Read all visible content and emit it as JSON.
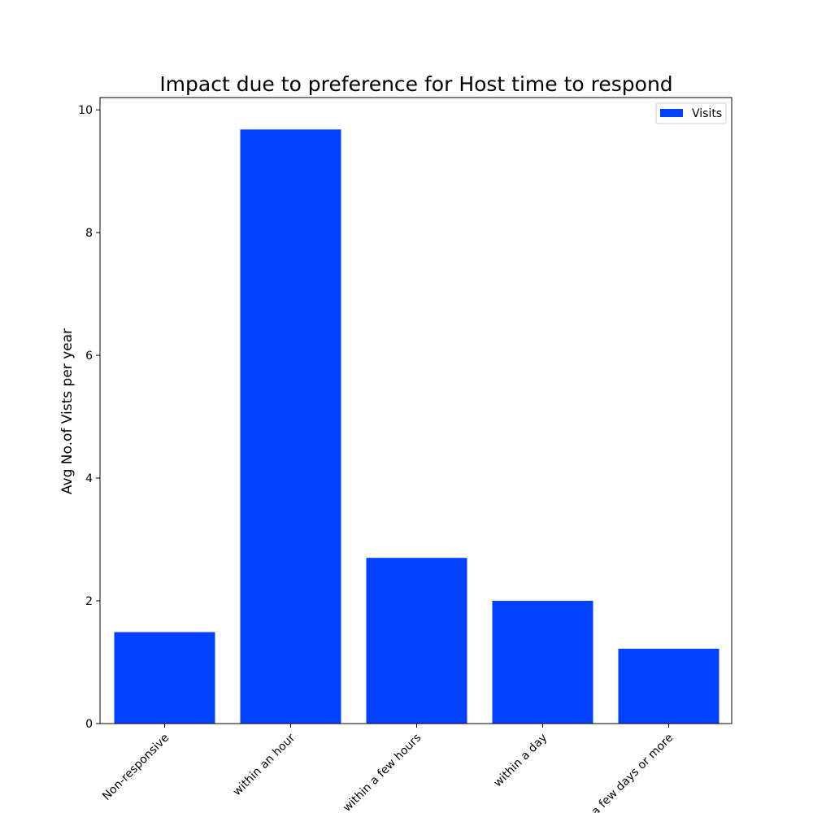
{
  "chart_data": {
    "type": "bar",
    "title": "Impact due to preference for Host time to respond",
    "xlabel": "",
    "ylabel": "Avg No.of Vists per year",
    "categories": [
      "Non-responsive",
      "within an hour",
      "within a few hours",
      "within a day",
      "a few days or more"
    ],
    "series": [
      {
        "name": "Visits",
        "values": [
          1.49,
          9.68,
          2.7,
          2.0,
          1.22
        ],
        "color": "#0340ff"
      }
    ],
    "ylim": [
      0,
      10.2
    ],
    "yticks": [
      "0",
      "2",
      "4",
      "6",
      "8",
      "10"
    ],
    "grid": false,
    "legend": {
      "placement": "top-right",
      "entries": [
        "Visits"
      ]
    }
  }
}
